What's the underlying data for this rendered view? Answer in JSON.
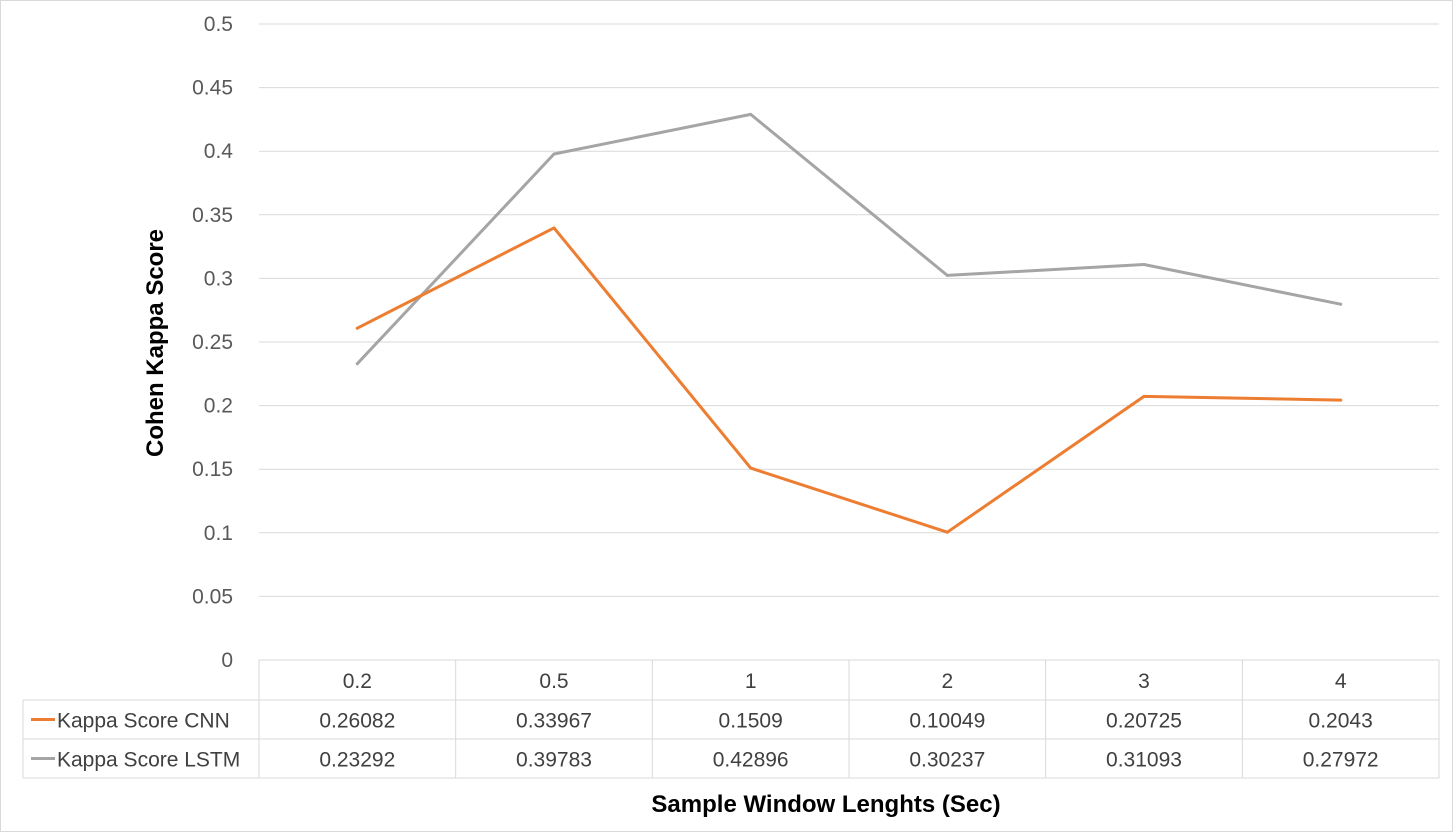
{
  "chart_data": {
    "type": "line",
    "title": "",
    "xlabel": "Sample Window Lenghts (Sec)",
    "ylabel": "Cohen Kappa Score",
    "categories": [
      "0.2",
      "0.5",
      "1",
      "2",
      "3",
      "4"
    ],
    "y_ticks": [
      "0",
      "0.05",
      "0.1",
      "0.15",
      "0.2",
      "0.25",
      "0.3",
      "0.35",
      "0.4",
      "0.45",
      "0.5"
    ],
    "ylim": [
      0,
      0.5
    ],
    "grid": true,
    "legend": "data table below the x axis",
    "series": [
      {
        "name": "Kappa Score CNN",
        "color": "#ED7D31",
        "values": [
          0.26082,
          0.33967,
          0.1509,
          0.10049,
          0.20725,
          0.2043
        ],
        "labels": [
          "0.26082",
          "0.33967",
          "0.1509",
          "0.10049",
          "0.20725",
          "0.2043"
        ]
      },
      {
        "name": "Kappa Score LSTM",
        "color": "#A5A5A5",
        "values": [
          0.23292,
          0.39783,
          0.42896,
          0.30237,
          0.31093,
          0.27972
        ],
        "labels": [
          "0.23292",
          "0.39783",
          "0.42896",
          "0.30237",
          "0.31093",
          "0.27972"
        ]
      }
    ]
  }
}
